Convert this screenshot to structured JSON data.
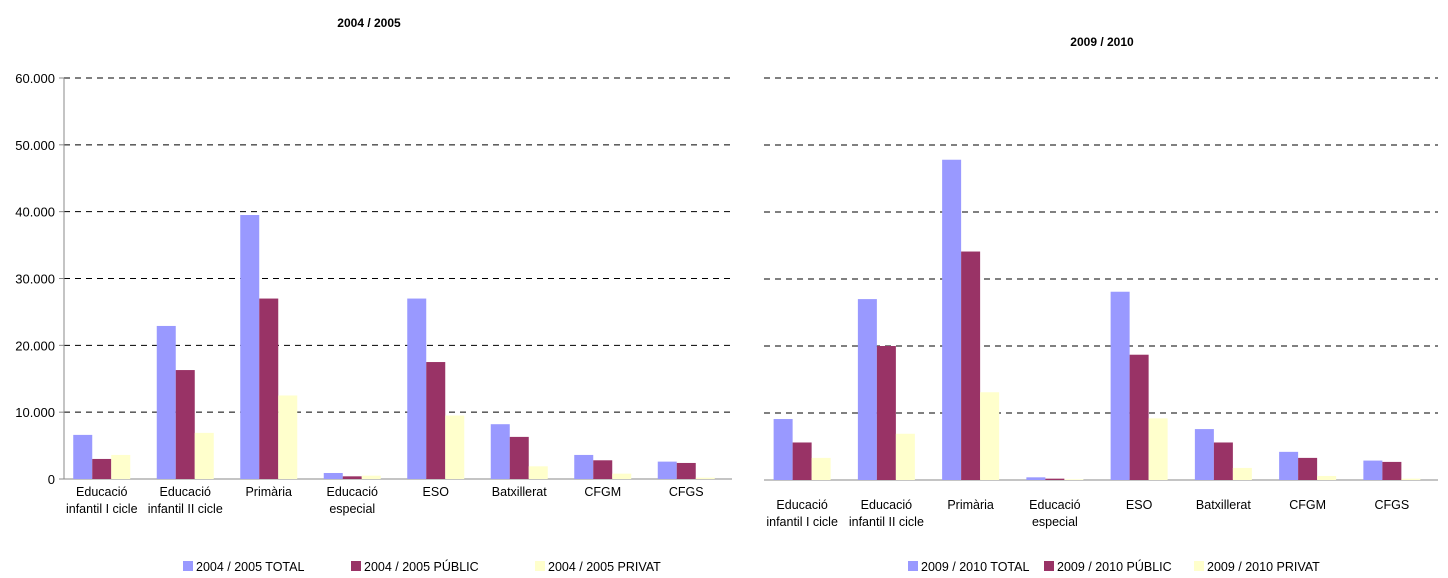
{
  "chart_data": [
    {
      "type": "bar",
      "title": "2004 / 2005",
      "categories": [
        [
          "Educació",
          "infantil I cicle"
        ],
        [
          "Educació",
          "infantil II cicle"
        ],
        [
          "Primària"
        ],
        [
          "Educació",
          "especial"
        ],
        [
          "ESO"
        ],
        [
          "Batxillerat"
        ],
        [
          "CFGM"
        ],
        [
          "CFGS"
        ]
      ],
      "ylim": [
        0,
        60000
      ],
      "yticks": [
        "0",
        "10.000",
        "20.000",
        "30.000",
        "40.000",
        "50.000",
        "60.000"
      ],
      "grid": true,
      "legend_position": "bottom",
      "series": [
        {
          "name": "2004 / 2005 TOTAL",
          "color": "#9999FF",
          "values": [
            6600,
            22900,
            39500,
            900,
            27000,
            8200,
            3600,
            2600
          ]
        },
        {
          "name": "2004 / 2005 PÚBLIC",
          "color": "#993366",
          "values": [
            3000,
            16300,
            27000,
            400,
            17500,
            6300,
            2800,
            2400
          ]
        },
        {
          "name": "2004 / 2005 PRIVAT",
          "color": "#FFFFCC",
          "values": [
            3600,
            6900,
            12500,
            500,
            9500,
            1900,
            800,
            200
          ]
        }
      ]
    },
    {
      "type": "bar",
      "title": "2009 / 2010",
      "categories": [
        [
          "Educació",
          "infantil I cicle"
        ],
        [
          "Educació",
          "infantil II cicle"
        ],
        [
          "Primària"
        ],
        [
          "Educació",
          "especial"
        ],
        [
          "ESO"
        ],
        [
          "Batxillerat"
        ],
        [
          "CFGM"
        ],
        [
          "CFGS"
        ]
      ],
      "ylim": [
        0,
        60000
      ],
      "grid": true,
      "legend_position": "bottom",
      "series": [
        {
          "name": "2009 / 2010 TOTAL",
          "color": "#9999FF",
          "values": [
            9100,
            27000,
            47800,
            400,
            28100,
            7600,
            4200,
            2900
          ]
        },
        {
          "name": "2009 / 2010 PÚBLIC",
          "color": "#993366",
          "values": [
            5600,
            20000,
            34100,
            200,
            18700,
            5600,
            3300,
            2700
          ]
        },
        {
          "name": "2009 / 2010 PRIVAT",
          "color": "#FFFFCC",
          "values": [
            3300,
            6900,
            13100,
            100,
            9200,
            1800,
            600,
            200
          ]
        }
      ]
    }
  ]
}
